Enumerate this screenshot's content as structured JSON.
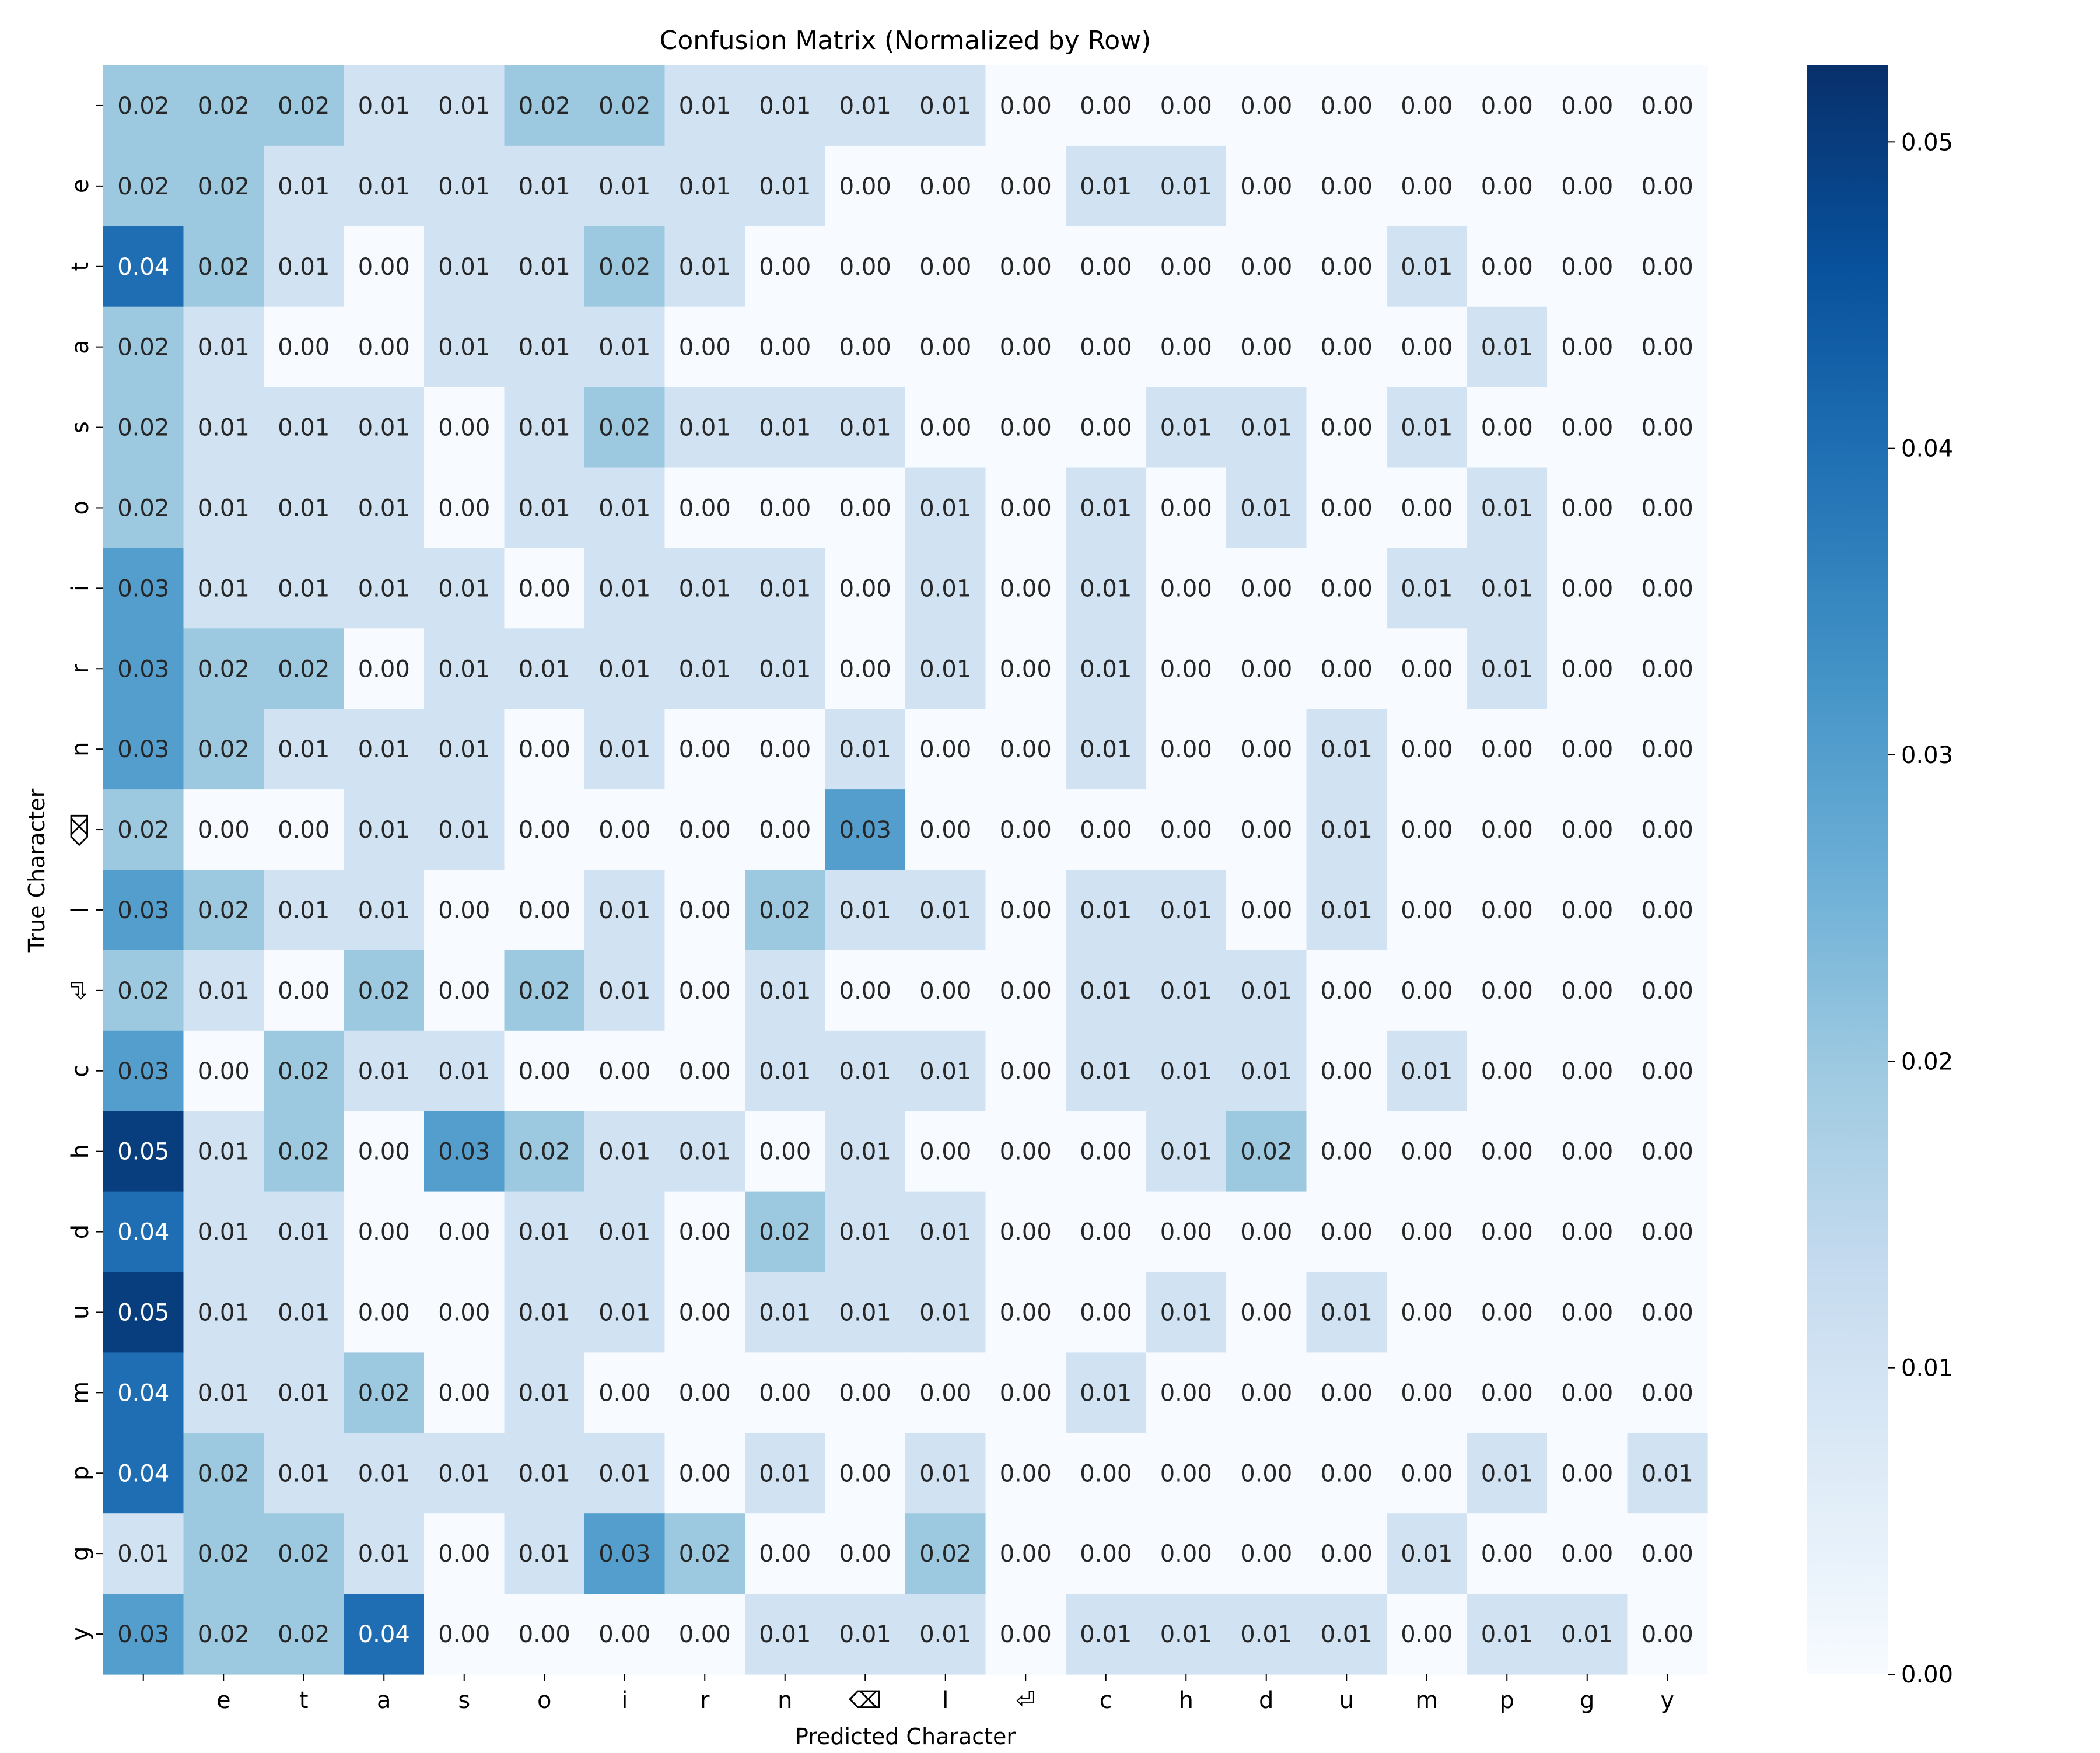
{
  "chart_data": {
    "type": "heatmap",
    "title": "Confusion Matrix (Normalized by Row)",
    "xlabel": "Predicted Character",
    "ylabel": "True Character",
    "x_labels": [
      " ",
      "e",
      "t",
      "a",
      "s",
      "o",
      "i",
      "r",
      "n",
      "⌫",
      "l",
      "⏎",
      "c",
      "h",
      "d",
      "u",
      "m",
      "p",
      "g",
      "y"
    ],
    "y_labels": [
      " ",
      "e",
      "t",
      "a",
      "s",
      "o",
      "i",
      "r",
      "n",
      "⌫",
      "l",
      "⏎",
      "c",
      "h",
      "d",
      "u",
      "m",
      "p",
      "g",
      "y"
    ],
    "values": [
      [
        0.02,
        0.02,
        0.02,
        0.01,
        0.01,
        0.02,
        0.02,
        0.01,
        0.01,
        0.01,
        0.01,
        0.0,
        0.0,
        0.0,
        0.0,
        0.0,
        0.0,
        0.0,
        0.0,
        0.0
      ],
      [
        0.02,
        0.02,
        0.01,
        0.01,
        0.01,
        0.01,
        0.01,
        0.01,
        0.01,
        0.0,
        0.0,
        0.0,
        0.01,
        0.01,
        0.0,
        0.0,
        0.0,
        0.0,
        0.0,
        0.0
      ],
      [
        0.04,
        0.02,
        0.01,
        0.0,
        0.01,
        0.01,
        0.02,
        0.01,
        0.0,
        0.0,
        0.0,
        0.0,
        0.0,
        0.0,
        0.0,
        0.0,
        0.01,
        0.0,
        0.0,
        0.0
      ],
      [
        0.02,
        0.01,
        0.0,
        0.0,
        0.01,
        0.01,
        0.01,
        0.0,
        0.0,
        0.0,
        0.0,
        0.0,
        0.0,
        0.0,
        0.0,
        0.0,
        0.0,
        0.01,
        0.0,
        0.0
      ],
      [
        0.02,
        0.01,
        0.01,
        0.01,
        0.0,
        0.01,
        0.02,
        0.01,
        0.01,
        0.01,
        0.0,
        0.0,
        0.0,
        0.01,
        0.01,
        0.0,
        0.01,
        0.0,
        0.0,
        0.0
      ],
      [
        0.02,
        0.01,
        0.01,
        0.01,
        0.0,
        0.01,
        0.01,
        0.0,
        0.0,
        0.0,
        0.01,
        0.0,
        0.01,
        0.0,
        0.01,
        0.0,
        0.0,
        0.01,
        0.0,
        0.0
      ],
      [
        0.03,
        0.01,
        0.01,
        0.01,
        0.01,
        0.0,
        0.01,
        0.01,
        0.01,
        0.0,
        0.01,
        0.0,
        0.01,
        0.0,
        0.0,
        0.0,
        0.01,
        0.01,
        0.0,
        0.0
      ],
      [
        0.03,
        0.02,
        0.02,
        0.0,
        0.01,
        0.01,
        0.01,
        0.01,
        0.01,
        0.0,
        0.01,
        0.0,
        0.01,
        0.0,
        0.0,
        0.0,
        0.0,
        0.01,
        0.0,
        0.0
      ],
      [
        0.03,
        0.02,
        0.01,
        0.01,
        0.01,
        0.0,
        0.01,
        0.0,
        0.0,
        0.01,
        0.0,
        0.0,
        0.01,
        0.0,
        0.0,
        0.01,
        0.0,
        0.0,
        0.0,
        0.0
      ],
      [
        0.02,
        0.0,
        0.0,
        0.01,
        0.01,
        0.0,
        0.0,
        0.0,
        0.0,
        0.03,
        0.0,
        0.0,
        0.0,
        0.0,
        0.0,
        0.01,
        0.0,
        0.0,
        0.0,
        0.0
      ],
      [
        0.03,
        0.02,
        0.01,
        0.01,
        0.0,
        0.0,
        0.01,
        0.0,
        0.02,
        0.01,
        0.01,
        0.0,
        0.01,
        0.01,
        0.0,
        0.01,
        0.0,
        0.0,
        0.0,
        0.0
      ],
      [
        0.02,
        0.01,
        0.0,
        0.02,
        0.0,
        0.02,
        0.01,
        0.0,
        0.01,
        0.0,
        0.0,
        0.0,
        0.01,
        0.01,
        0.01,
        0.0,
        0.0,
        0.0,
        0.0,
        0.0
      ],
      [
        0.03,
        0.0,
        0.02,
        0.01,
        0.01,
        0.0,
        0.0,
        0.0,
        0.01,
        0.01,
        0.01,
        0.0,
        0.01,
        0.01,
        0.01,
        0.0,
        0.01,
        0.0,
        0.0,
        0.0
      ],
      [
        0.05,
        0.01,
        0.02,
        0.0,
        0.03,
        0.02,
        0.01,
        0.01,
        0.0,
        0.01,
        0.0,
        0.0,
        0.0,
        0.01,
        0.02,
        0.0,
        0.0,
        0.0,
        0.0,
        0.0
      ],
      [
        0.04,
        0.01,
        0.01,
        0.0,
        0.0,
        0.01,
        0.01,
        0.0,
        0.02,
        0.01,
        0.01,
        0.0,
        0.0,
        0.0,
        0.0,
        0.0,
        0.0,
        0.0,
        0.0,
        0.0
      ],
      [
        0.05,
        0.01,
        0.01,
        0.0,
        0.0,
        0.01,
        0.01,
        0.0,
        0.01,
        0.01,
        0.01,
        0.0,
        0.0,
        0.01,
        0.0,
        0.01,
        0.0,
        0.0,
        0.0,
        0.0
      ],
      [
        0.04,
        0.01,
        0.01,
        0.02,
        0.0,
        0.01,
        0.0,
        0.0,
        0.0,
        0.0,
        0.0,
        0.0,
        0.01,
        0.0,
        0.0,
        0.0,
        0.0,
        0.0,
        0.0,
        0.0
      ],
      [
        0.04,
        0.02,
        0.01,
        0.01,
        0.01,
        0.01,
        0.01,
        0.0,
        0.01,
        0.0,
        0.01,
        0.0,
        0.0,
        0.0,
        0.0,
        0.0,
        0.0,
        0.01,
        0.0,
        0.01
      ],
      [
        0.01,
        0.02,
        0.02,
        0.01,
        0.0,
        0.01,
        0.03,
        0.02,
        0.0,
        0.0,
        0.02,
        0.0,
        0.0,
        0.0,
        0.0,
        0.0,
        0.01,
        0.0,
        0.0,
        0.0
      ],
      [
        0.03,
        0.02,
        0.02,
        0.04,
        0.0,
        0.0,
        0.0,
        0.0,
        0.01,
        0.01,
        0.01,
        0.0,
        0.01,
        0.01,
        0.01,
        0.01,
        0.0,
        0.01,
        0.01,
        0.0
      ]
    ],
    "colorbar": {
      "range": [
        0.0,
        0.0525
      ],
      "ticks": [
        0.0,
        0.01,
        0.02,
        0.03,
        0.04,
        0.05
      ],
      "tick_labels": [
        "0.00",
        "0.01",
        "0.02",
        "0.03",
        "0.04",
        "0.05"
      ],
      "colormap": "Blues",
      "colors": [
        "#f7fbff",
        "#deebf7",
        "#c6dbef",
        "#9ecae1",
        "#6baed6",
        "#4292c6",
        "#2171b5",
        "#08519c",
        "#08306b"
      ]
    },
    "grid": false,
    "legend": "colorbar-right"
  }
}
